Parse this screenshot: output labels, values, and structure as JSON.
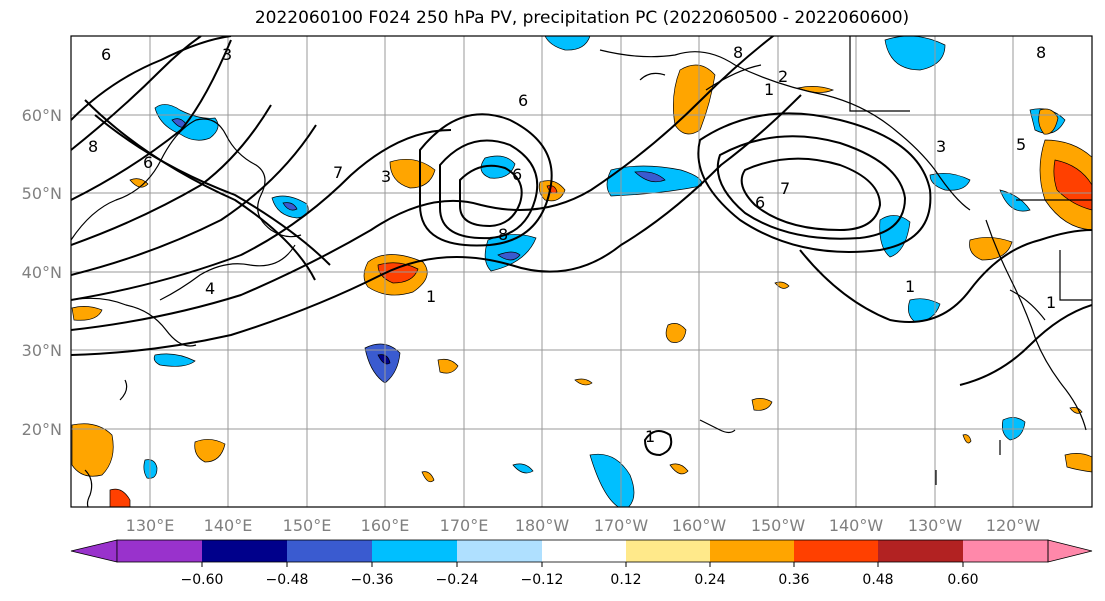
{
  "title": "2022060100 F024 250 hPa PV, precipitation PC (2022060500 - 2022060600)",
  "lat_labels": [
    "60°N",
    "50°N",
    "40°N",
    "30°N",
    "20°N"
  ],
  "lon_labels": [
    "130°E",
    "140°E",
    "150°E",
    "160°E",
    "170°E",
    "180°W",
    "170°W",
    "160°W",
    "150°W",
    "140°W",
    "130°W",
    "120°W"
  ],
  "colorbar": {
    "ticks": [
      "−0.60",
      "−0.48",
      "−0.36",
      "−0.24",
      "−0.12",
      "0.12",
      "0.24",
      "0.36",
      "0.48",
      "0.60"
    ],
    "colors": [
      "#9932cc",
      "#00008b",
      "#3a5bd0",
      "#00bfff",
      "#afe0ff",
      "#ffffff",
      "#ffe98a",
      "#ffa500",
      "#ff4000",
      "#b22222",
      "#ff88aa"
    ]
  },
  "contour_labels": [
    "1",
    "2",
    "3",
    "4",
    "5",
    "6",
    "7",
    "8"
  ]
}
